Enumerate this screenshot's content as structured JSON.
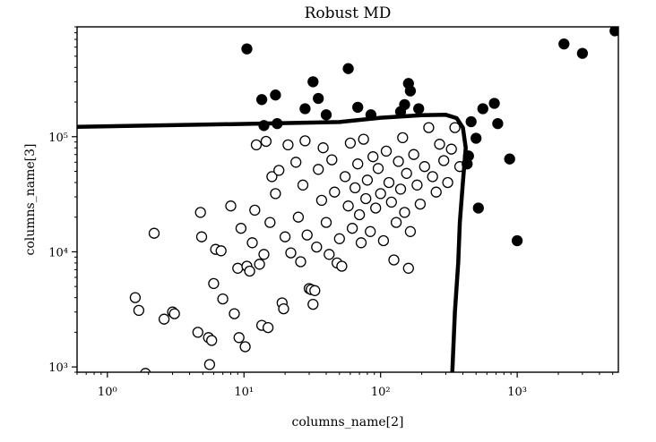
{
  "chart_data": {
    "type": "scatter",
    "title": "Robust MD",
    "xlabel": "columns_name[2]",
    "ylabel": "columns_name[3]",
    "xscale": "log",
    "yscale": "log",
    "xlim": [
      0.6,
      5500
    ],
    "ylim": [
      900,
      900000
    ],
    "x_ticks": [
      {
        "value": 1,
        "label": "10⁰"
      },
      {
        "value": 10,
        "label": "10¹"
      },
      {
        "value": 100,
        "label": "10²"
      },
      {
        "value": 1000,
        "label": "10³"
      }
    ],
    "y_ticks": [
      {
        "value": 1000,
        "label": "10³"
      },
      {
        "value": 10000,
        "label": "10⁴"
      },
      {
        "value": 100000,
        "label": "10⁵"
      }
    ],
    "grid": false,
    "series": [
      {
        "marker": "open-circle",
        "color": "#ffffff",
        "edge_color": "#000000",
        "points": [
          [
            1.6,
            4000
          ],
          [
            1.7,
            3100
          ],
          [
            1.9,
            880
          ],
          [
            2.2,
            14500
          ],
          [
            2.6,
            2600
          ],
          [
            3.0,
            3000
          ],
          [
            3.1,
            2900
          ],
          [
            4.6,
            2000
          ],
          [
            4.8,
            22000
          ],
          [
            4.9,
            13500
          ],
          [
            5.5,
            1800
          ],
          [
            5.6,
            1050
          ],
          [
            5.8,
            1700
          ],
          [
            6.0,
            5300
          ],
          [
            6.2,
            10500
          ],
          [
            6.8,
            10200
          ],
          [
            7.0,
            3900
          ],
          [
            8.0,
            25000
          ],
          [
            8.5,
            2900
          ],
          [
            9.0,
            7200
          ],
          [
            9.2,
            1800
          ],
          [
            9.5,
            16000
          ],
          [
            10.2,
            1500
          ],
          [
            10.5,
            7500
          ],
          [
            11.0,
            6800
          ],
          [
            11.5,
            12000
          ],
          [
            12.0,
            23000
          ],
          [
            12.3,
            85000
          ],
          [
            13.0,
            7800
          ],
          [
            13.5,
            2300
          ],
          [
            14.0,
            9500
          ],
          [
            14.5,
            91000
          ],
          [
            15.0,
            2200
          ],
          [
            15.5,
            18000
          ],
          [
            16.0,
            45000
          ],
          [
            17.0,
            32000
          ],
          [
            18.0,
            51000
          ],
          [
            19.0,
            3600
          ],
          [
            19.5,
            3200
          ],
          [
            20.0,
            13500
          ],
          [
            21.0,
            85000
          ],
          [
            22.0,
            9800
          ],
          [
            24.0,
            60000
          ],
          [
            25.0,
            20000
          ],
          [
            26.0,
            8200
          ],
          [
            27.0,
            38000
          ],
          [
            28.0,
            92000
          ],
          [
            29.0,
            14000
          ],
          [
            30.0,
            4800
          ],
          [
            31.0,
            4700
          ],
          [
            32.0,
            3500
          ],
          [
            33.0,
            4600
          ],
          [
            34.0,
            11000
          ],
          [
            35.0,
            52000
          ],
          [
            37.0,
            28000
          ],
          [
            38.0,
            80000
          ],
          [
            40.0,
            18000
          ],
          [
            42.0,
            9500
          ],
          [
            44.0,
            63000
          ],
          [
            46.0,
            33000
          ],
          [
            48.0,
            8000
          ],
          [
            50.0,
            13000
          ],
          [
            52.0,
            7500
          ],
          [
            55.0,
            45000
          ],
          [
            58.0,
            25000
          ],
          [
            60.0,
            88000
          ],
          [
            62.0,
            16000
          ],
          [
            65.0,
            36000
          ],
          [
            68.0,
            58000
          ],
          [
            70.0,
            21000
          ],
          [
            72.0,
            12000
          ],
          [
            75.0,
            95000
          ],
          [
            78.0,
            29000
          ],
          [
            80.0,
            42000
          ],
          [
            84.0,
            15000
          ],
          [
            88.0,
            67000
          ],
          [
            92.0,
            24000
          ],
          [
            96.0,
            53000
          ],
          [
            100.0,
            32000
          ],
          [
            105.0,
            12500
          ],
          [
            110.0,
            75000
          ],
          [
            115.0,
            40000
          ],
          [
            120.0,
            27000
          ],
          [
            125.0,
            8500
          ],
          [
            130.0,
            18000
          ],
          [
            135.0,
            61000
          ],
          [
            140.0,
            35000
          ],
          [
            145.0,
            98000
          ],
          [
            150.0,
            22000
          ],
          [
            155.0,
            48000
          ],
          [
            160.0,
            7200
          ],
          [
            165.0,
            15000
          ],
          [
            175.0,
            70000
          ],
          [
            185.0,
            38000
          ],
          [
            195.0,
            26000
          ],
          [
            210.0,
            55000
          ],
          [
            225.0,
            120000
          ],
          [
            240.0,
            45000
          ],
          [
            255.0,
            33000
          ],
          [
            270.0,
            86000
          ],
          [
            290.0,
            62000
          ],
          [
            310.0,
            40000
          ],
          [
            330.0,
            78000
          ],
          [
            350.0,
            120000
          ],
          [
            380.0,
            55000
          ]
        ]
      },
      {
        "marker": "filled-circle",
        "color": "#000000",
        "points": [
          [
            10.5,
            580000
          ],
          [
            13.5,
            210000
          ],
          [
            14.0,
            125000
          ],
          [
            17.0,
            230000
          ],
          [
            17.5,
            130000
          ],
          [
            28.0,
            175000
          ],
          [
            32.0,
            300000
          ],
          [
            35.0,
            215000
          ],
          [
            40.0,
            155000
          ],
          [
            58.0,
            390000
          ],
          [
            68.0,
            180000
          ],
          [
            85.0,
            155000
          ],
          [
            140.0,
            165000
          ],
          [
            150.0,
            190000
          ],
          [
            160.0,
            290000
          ],
          [
            165.0,
            250000
          ],
          [
            190.0,
            175000
          ],
          [
            430.0,
            58000
          ],
          [
            440.0,
            68000
          ],
          [
            460.0,
            135000
          ],
          [
            500.0,
            97000
          ],
          [
            520.0,
            24000
          ],
          [
            560.0,
            175000
          ],
          [
            680.0,
            195000
          ],
          [
            720.0,
            130000
          ],
          [
            880.0,
            64000
          ],
          [
            1000.0,
            12500
          ],
          [
            2200.0,
            640000
          ],
          [
            3000.0,
            530000
          ],
          [
            5200.0,
            830000
          ]
        ]
      }
    ],
    "contour": {
      "color": "#000000",
      "points": [
        [
          0.6,
          122000
        ],
        [
          10.0,
          129000
        ],
        [
          50.0,
          134000
        ],
        [
          100.0,
          146000
        ],
        [
          200.0,
          154000
        ],
        [
          300.0,
          155000
        ],
        [
          360.0,
          145000
        ],
        [
          400.0,
          120000
        ],
        [
          420.0,
          80000
        ],
        [
          400.0,
          40000
        ],
        [
          380.0,
          18000
        ],
        [
          370.0,
          8000
        ],
        [
          350.0,
          3000
        ],
        [
          335.0,
          900
        ]
      ]
    }
  }
}
